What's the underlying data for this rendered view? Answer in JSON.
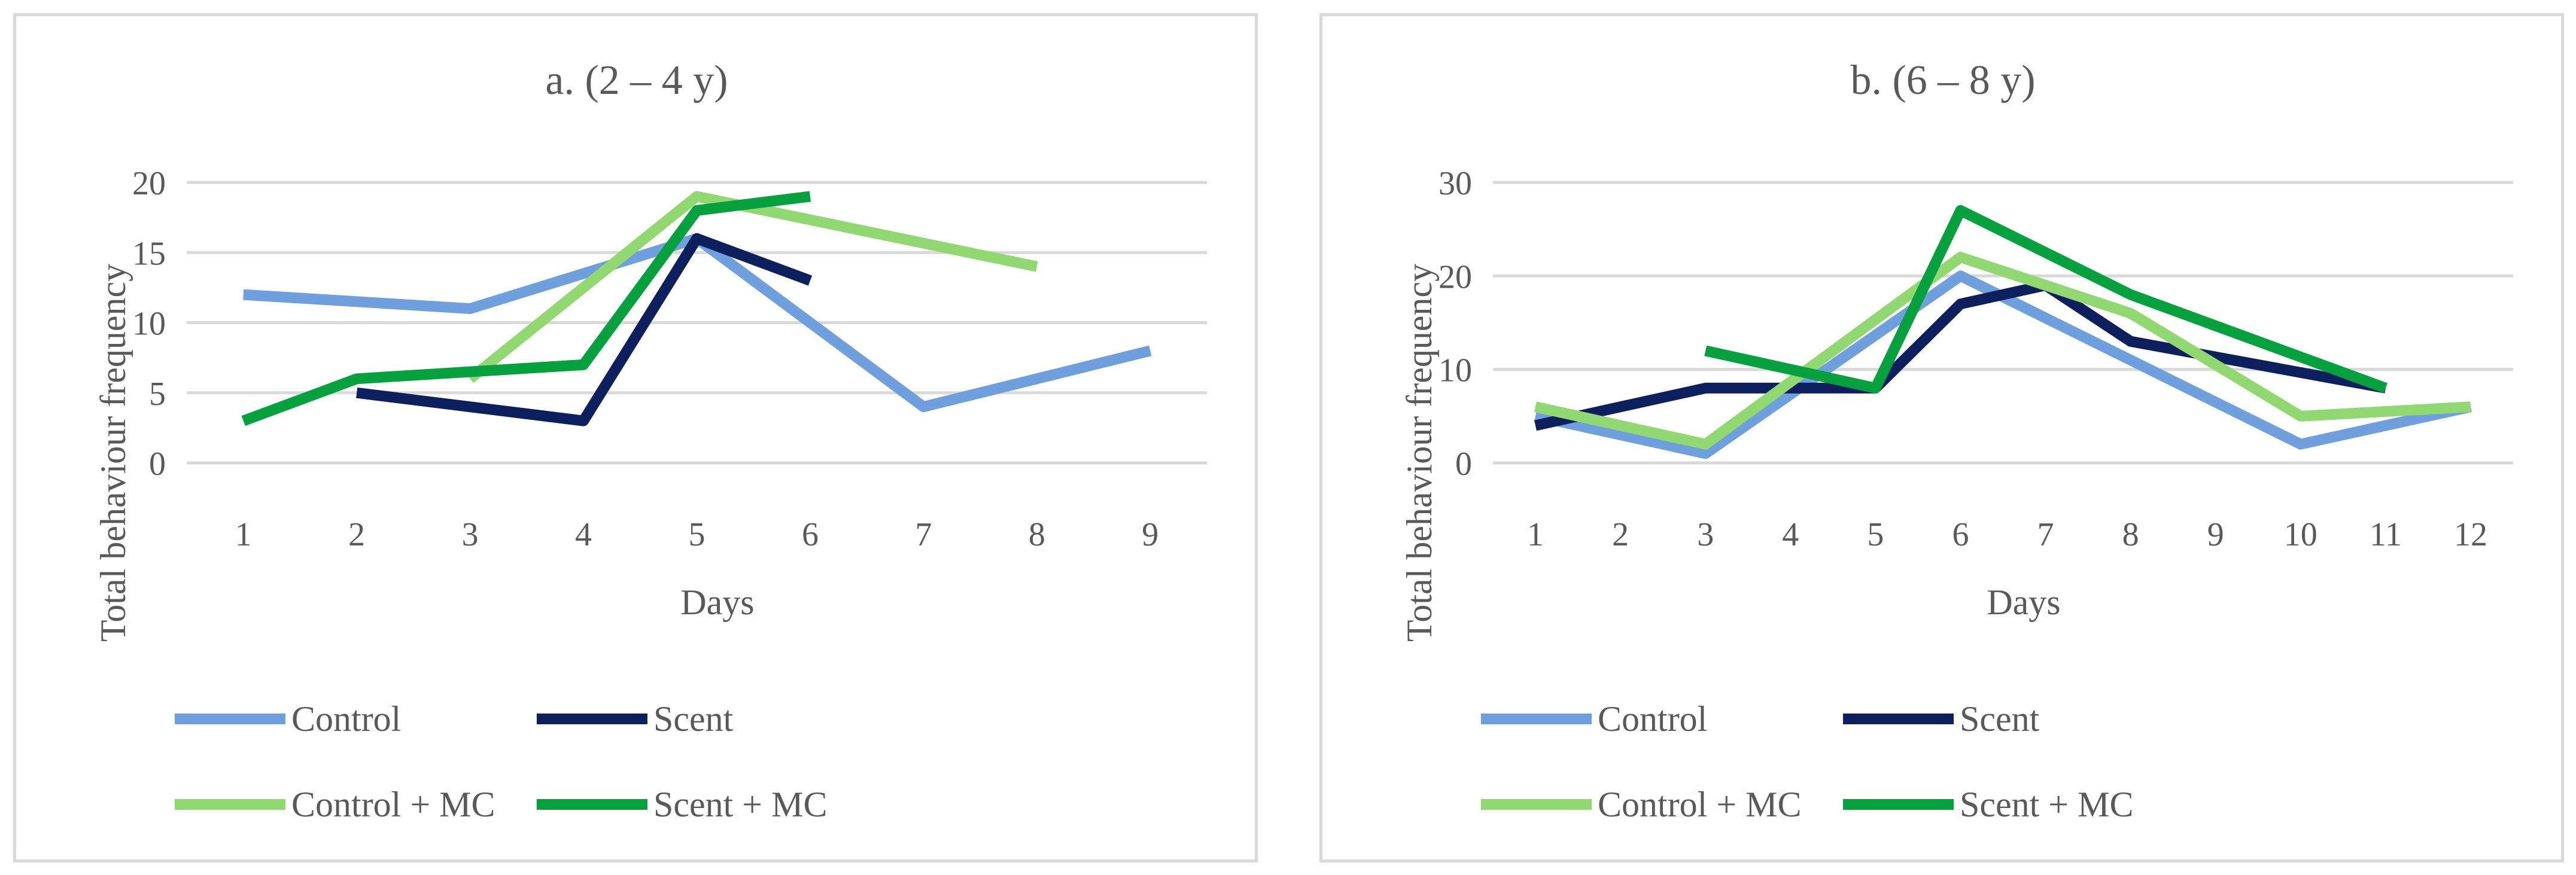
{
  "chart_data": [
    {
      "type": "line",
      "title": "a. (2 – 4 y)",
      "xlabel": "Days",
      "ylabel": "Total behaviour frequency",
      "categories": [
        "1",
        "2",
        "3",
        "4",
        "5",
        "6",
        "7",
        "8",
        "9"
      ],
      "ylim": [
        0,
        20
      ],
      "yticks": [
        "0",
        "5",
        "10",
        "15",
        "20"
      ],
      "grid": true,
      "legend": "bottom",
      "series": [
        {
          "name": "Control",
          "color": "#6f9fdc",
          "x": [
            1,
            3,
            5,
            7,
            9
          ],
          "values": [
            12,
            11,
            16,
            4,
            8
          ]
        },
        {
          "name": "Scent",
          "color": "#0d1f5c",
          "x": [
            2,
            4,
            5,
            6
          ],
          "values": [
            5,
            3,
            16,
            13
          ]
        },
        {
          "name": "Control + MC",
          "color": "#92d872",
          "x": [
            3,
            5,
            8
          ],
          "values": [
            6,
            19,
            14
          ]
        },
        {
          "name": "Scent + MC",
          "color": "#07a03f",
          "x": [
            1,
            2,
            4,
            5,
            6
          ],
          "values": [
            3,
            6,
            7,
            18,
            19
          ]
        }
      ]
    },
    {
      "type": "line",
      "title": "b. (6 – 8 y)",
      "xlabel": "Days",
      "ylabel": "Total behaviour frequency",
      "categories": [
        "1",
        "2",
        "3",
        "4",
        "5",
        "6",
        "7",
        "8",
        "9",
        "10",
        "11",
        "12"
      ],
      "ylim": [
        0,
        30
      ],
      "yticks": [
        "0",
        "10",
        "20",
        "30"
      ],
      "grid": true,
      "legend": "bottom",
      "series": [
        {
          "name": "Control",
          "color": "#6f9fdc",
          "x": [
            1,
            3,
            6,
            10,
            12
          ],
          "values": [
            5,
            1,
            20,
            2,
            6
          ]
        },
        {
          "name": "Scent",
          "color": "#0d1f5c",
          "x": [
            1,
            3,
            5,
            6,
            7,
            8,
            11
          ],
          "values": [
            4,
            8,
            8,
            17,
            19,
            13,
            8
          ]
        },
        {
          "name": "Control + MC",
          "color": "#92d872",
          "x": [
            1,
            3,
            6,
            8,
            10,
            12
          ],
          "values": [
            6,
            2,
            22,
            16,
            5,
            6
          ]
        },
        {
          "name": "Scent + MC",
          "color": "#07a03f",
          "x": [
            3,
            5,
            6,
            8,
            11
          ],
          "values": [
            12,
            8,
            27,
            18,
            8
          ]
        }
      ]
    }
  ]
}
